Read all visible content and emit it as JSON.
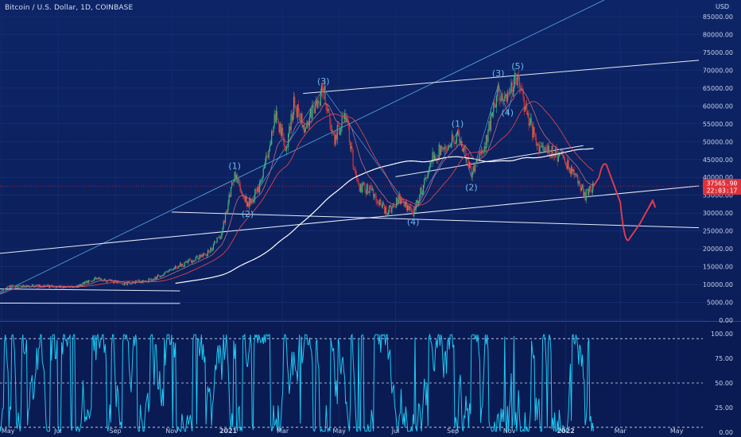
{
  "header": {
    "title": "Bitcoin / U.S. Dollar, 1D, COINBASE",
    "currency": "USD"
  },
  "price_badge": {
    "price": "37565.90",
    "countdown": "22:03:17",
    "color": "#e0313a"
  },
  "colors": {
    "candle_up": "#3fb883",
    "candle_down": "#e0313a",
    "trendline": "#e7ecf7",
    "projection": "#e83b4c",
    "ma_white": "#ffffff",
    "ma_red": "#d9434d",
    "ma_pink": "#c46a86",
    "diagonal": "#5aa9e6",
    "oscillator": "#1ec8f2"
  },
  "chart_data": [
    {
      "type": "candlestick",
      "title": "Bitcoin / U.S. Dollar, 1D, COINBASE",
      "x_tick_labels": [
        "May",
        "Jul",
        "Sep",
        "Nov",
        "2021",
        "Mar",
        "May",
        "Jul",
        "Sep",
        "Nov",
        "2022",
        "Mar",
        "May"
      ],
      "x_tick_dates": [
        "2020-05-01",
        "2020-07-01",
        "2020-09-01",
        "2020-11-01",
        "2021-01-01",
        "2021-03-01",
        "2021-05-01",
        "2021-07-01",
        "2021-09-01",
        "2021-11-01",
        "2022-01-01",
        "2022-03-01",
        "2022-05-01"
      ],
      "y_tick_labels": [
        "85000.00",
        "80000.00",
        "75000.00",
        "70000.00",
        "65000.00",
        "60000.00",
        "55000.00",
        "50000.00",
        "45000.00",
        "40000.00",
        "35000.00",
        "30000.00",
        "25000.00",
        "20000.00",
        "15000.00",
        "10000.00",
        "5000.00",
        "0.00"
      ],
      "ylim": [
        0,
        87000
      ],
      "grid": true,
      "last_price": 37565.9,
      "price_path": {
        "dates": [
          "2020-04-20",
          "2020-05-10",
          "2020-06-10",
          "2020-07-20",
          "2020-08-10",
          "2020-09-10",
          "2020-10-10",
          "2020-11-10",
          "2020-12-10",
          "2020-12-25",
          "2021-01-08",
          "2021-01-22",
          "2021-02-05",
          "2021-02-21",
          "2021-03-05",
          "2021-03-13",
          "2021-03-25",
          "2021-04-14",
          "2021-04-25",
          "2021-05-08",
          "2021-05-20",
          "2021-06-05",
          "2021-06-22",
          "2021-07-05",
          "2021-07-20",
          "2021-08-10",
          "2021-09-06",
          "2021-09-21",
          "2021-10-05",
          "2021-10-20",
          "2021-10-30",
          "2021-11-10",
          "2021-11-20",
          "2021-12-04",
          "2021-12-20",
          "2022-01-05",
          "2022-01-22",
          "2022-01-31"
        ],
        "close": [
          7000,
          9500,
          9600,
          9200,
          11800,
          10200,
          11300,
          15300,
          18800,
          24500,
          41000,
          32000,
          38000,
          57000,
          48500,
          61000,
          54000,
          64800,
          50000,
          58000,
          38000,
          36000,
          30000,
          34000,
          29800,
          45500,
          52000,
          41500,
          49000,
          64000,
          61500,
          68500,
          57000,
          48000,
          47000,
          43000,
          35000,
          37565.9
        ]
      },
      "wave_labels": [
        {
          "label": "(1)",
          "date": "2021-01-08",
          "price": 41000
        },
        {
          "label": "(2)",
          "date": "2021-01-22",
          "price": 32000
        },
        {
          "label": "(3)",
          "date": "2021-04-14",
          "price": 64800
        },
        {
          "label": "(4)",
          "date": "2021-07-20",
          "price": 29800
        },
        {
          "label": "(1)",
          "date": "2021-09-06",
          "price": 52800
        },
        {
          "label": "(2)",
          "date": "2021-09-21",
          "price": 39500
        },
        {
          "label": "(3)",
          "date": "2021-10-20",
          "price": 67000
        },
        {
          "label": "(4)",
          "date": "2021-10-30",
          "price": 56000
        },
        {
          "label": "(5)",
          "date": "2021-11-10",
          "price": 69000
        }
      ],
      "projection": {
        "dates": [
          "2022-01-31",
          "2022-02-06",
          "2022-02-14",
          "2022-03-01",
          "2022-03-10",
          "2022-03-22",
          "2022-04-05"
        ],
        "price": [
          37565.9,
          40000,
          43500,
          33000,
          22500,
          27000,
          33500
        ]
      }
    },
    {
      "type": "line",
      "ylim": [
        0,
        100
      ],
      "y_tick_labels": [
        "100.00",
        "75.00",
        "50.00",
        "25.00",
        "0.00"
      ],
      "reference_levels": [
        95,
        50,
        5
      ]
    }
  ]
}
